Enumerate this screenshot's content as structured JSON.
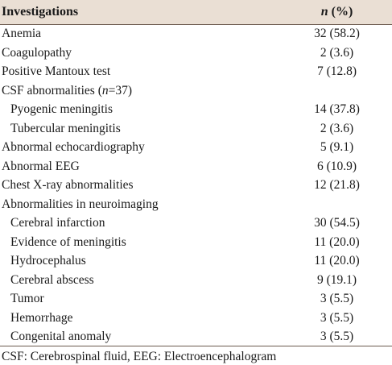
{
  "table": {
    "header": {
      "investigations": "Investigations",
      "n_label": "n",
      "pct_label": " (%)"
    },
    "rows": [
      {
        "label": "Anemia",
        "value": "32 (58.2)",
        "indent": false
      },
      {
        "label": "Coagulopathy",
        "value": "2 (3.6)",
        "indent": false
      },
      {
        "label": "Positive Mantoux test",
        "value": "7 (12.8)",
        "indent": false
      },
      {
        "label": "CSF abnormalities (n=37)",
        "value": "",
        "indent": false
      },
      {
        "label": "Pyogenic meningitis",
        "value": "14 (37.8)",
        "indent": true
      },
      {
        "label": "Tubercular meningitis",
        "value": "2 (3.6)",
        "indent": true
      },
      {
        "label": "Abnormal echocardiography",
        "value": "5 (9.1)",
        "indent": false
      },
      {
        "label": "Abnormal EEG",
        "value": "6 (10.9)",
        "indent": false
      },
      {
        "label": "Chest X-ray abnormalities",
        "value": "12 (21.8)",
        "indent": false
      },
      {
        "label": "Abnormalities in neuroimaging",
        "value": "",
        "indent": false
      },
      {
        "label": "Cerebral infarction",
        "value": "30 (54.5)",
        "indent": true
      },
      {
        "label": "Evidence of meningitis",
        "value": "11 (20.0)",
        "indent": true
      },
      {
        "label": "Hydrocephalus",
        "value": "11 (20.0)",
        "indent": true
      },
      {
        "label": "Cerebral abscess",
        "value": "9 (19.1)",
        "indent": true
      },
      {
        "label": "Tumor",
        "value": "3 (5.5)",
        "indent": true
      },
      {
        "label": "Hemorrhage",
        "value": "3 (5.5)",
        "indent": true
      },
      {
        "label": "Congenital anomaly",
        "value": "3 (5.5)",
        "indent": true
      }
    ]
  },
  "footnote": "CSF: Cerebrospinal fluid, EEG: Electroencephalogram",
  "colors": {
    "header_bg": "#eadfd4",
    "rule": "#6b5a4e"
  }
}
